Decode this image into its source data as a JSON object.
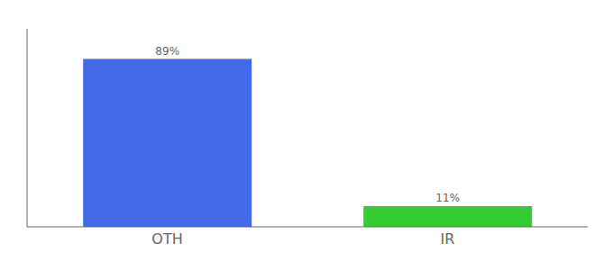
{
  "chart_data": {
    "type": "bar",
    "categories": [
      "OTH",
      "IR"
    ],
    "values": [
      89,
      11
    ],
    "value_labels": [
      "89%",
      "11%"
    ],
    "colors": [
      "#4169e8",
      "#33cc33"
    ],
    "ylim": [
      0,
      105
    ],
    "data_labels": true,
    "tick_labels": "x",
    "grid": false
  }
}
